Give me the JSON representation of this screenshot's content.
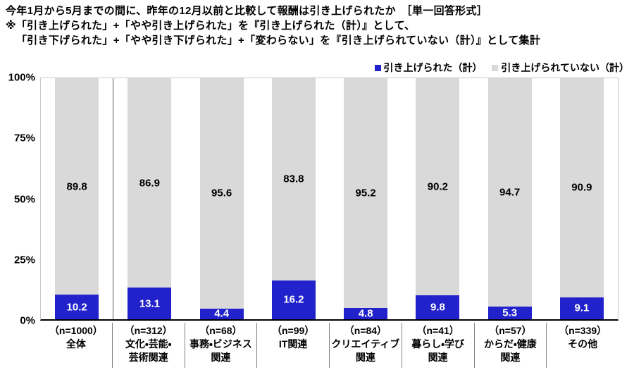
{
  "header": {
    "title_line1": "今年1月から5月までの間に、昨年の12月以前と比較して報酬は引き上げられたか　［単一回答形式］",
    "title_line2": "※「引き上げられた」+「やや引き上げられた」を『引き上げられた（計）』として、",
    "title_line3": "「引き下げられた」+「やや引き下げられた」+「変わらない」を『引き上げられていない（計）』として集計"
  },
  "colors": {
    "raised_blue": "#2222CC",
    "not_raised_gray": "#D9D9D9",
    "plot_border": "#C9C9C9",
    "axis_line": "#000000",
    "group_separator": "#595959",
    "label_separator": "#808080"
  },
  "chart_data": {
    "type": "bar",
    "stacked": true,
    "grid": false,
    "legend_position": "top-right",
    "title": "今年1月から5月までの間に、昨年の12月以前と比較して報酬は引き上げられたか",
    "categories": [
      "全体",
      "文化・芸能・芸術関連",
      "事務・ビジネス関連",
      "IT関連",
      "クリエイティブ関連",
      "暮らし・学び関連",
      "からだ・健康関連",
      "その他"
    ],
    "category_labels": [
      {
        "n": "（n=1000）",
        "lines": [
          "全体"
        ]
      },
      {
        "n": "（n=312）",
        "lines": [
          "文化・芸能・",
          "芸術関連"
        ]
      },
      {
        "n": "（n=68）",
        "lines": [
          "事務・ビジネス",
          "関連"
        ]
      },
      {
        "n": "（n=99）",
        "lines": [
          "IT関連"
        ]
      },
      {
        "n": "（n=84）",
        "lines": [
          "クリエイティブ",
          "関連"
        ]
      },
      {
        "n": "（n=41）",
        "lines": [
          "暮らし・学び",
          "関連"
        ]
      },
      {
        "n": "（n=57）",
        "lines": [
          "からだ・健康",
          "関連"
        ]
      },
      {
        "n": "（n=339）",
        "lines": [
          "その他"
        ]
      }
    ],
    "series": [
      {
        "name": "引き上げられた（計）",
        "color": "#2222CC",
        "values": [
          10.2,
          13.1,
          4.4,
          16.2,
          4.8,
          9.8,
          5.3,
          9.1
        ]
      },
      {
        "name": "引き上げられていない（計）",
        "color": "#D9D9D9",
        "values": [
          89.8,
          86.9,
          95.6,
          83.8,
          95.2,
          90.2,
          94.7,
          90.9
        ]
      }
    ],
    "y_ticks": [
      "0%",
      "25%",
      "50%",
      "75%",
      "100%"
    ],
    "ylim": [
      0,
      100
    ]
  }
}
